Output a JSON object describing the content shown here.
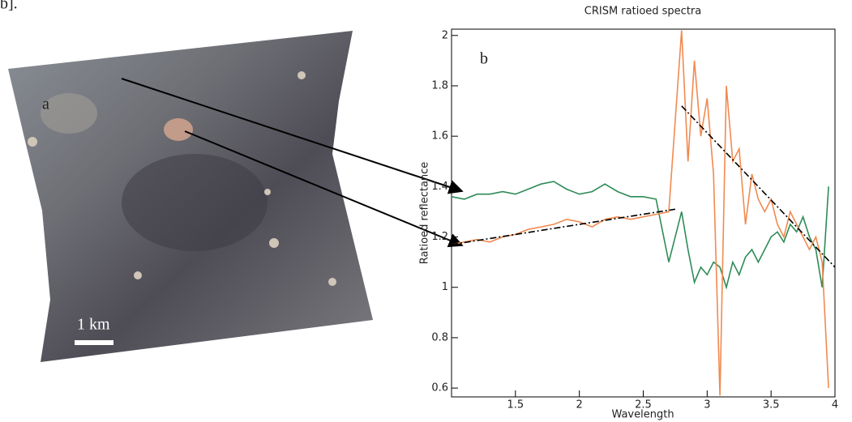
{
  "corner_text": "b].",
  "image_labels": {
    "panel": "a",
    "scale": "1 km"
  },
  "chart_data": {
    "type": "line",
    "title": "CRISM ratioed spectra",
    "panel_label": "b",
    "x_label": "Wavelength",
    "y_label": "Ratioed reflectance",
    "x": [
      1.0,
      1.1,
      1.2,
      1.3,
      1.4,
      1.5,
      1.6,
      1.7,
      1.8,
      1.9,
      2.0,
      2.1,
      2.2,
      2.3,
      2.4,
      2.5,
      2.6,
      2.7,
      2.8,
      2.85,
      2.9,
      2.95,
      3.0,
      3.05,
      3.1,
      3.15,
      3.2,
      3.25,
      3.3,
      3.35,
      3.4,
      3.45,
      3.5,
      3.55,
      3.6,
      3.65,
      3.7,
      3.75,
      3.8,
      3.85,
      3.9,
      3.95
    ],
    "series": [
      {
        "color": "#2e8b57",
        "values": [
          1.36,
          1.35,
          1.37,
          1.37,
          1.38,
          1.37,
          1.39,
          1.41,
          1.42,
          1.39,
          1.37,
          1.38,
          1.41,
          1.38,
          1.36,
          1.36,
          1.35,
          1.1,
          1.3,
          1.15,
          1.02,
          1.08,
          1.05,
          1.1,
          1.08,
          1.0,
          1.1,
          1.05,
          1.12,
          1.15,
          1.1,
          1.15,
          1.2,
          1.22,
          1.18,
          1.25,
          1.22,
          1.28,
          1.2,
          1.15,
          1.0,
          1.4
        ]
      },
      {
        "color": "#f08a50",
        "values": [
          1.17,
          1.18,
          1.19,
          1.18,
          1.2,
          1.21,
          1.23,
          1.24,
          1.25,
          1.27,
          1.26,
          1.24,
          1.27,
          1.28,
          1.27,
          1.28,
          1.29,
          1.3,
          2.02,
          1.5,
          1.9,
          1.6,
          1.75,
          1.45,
          0.57,
          1.8,
          1.5,
          1.55,
          1.25,
          1.45,
          1.35,
          1.3,
          1.35,
          1.25,
          1.2,
          1.3,
          1.25,
          1.2,
          1.15,
          1.2,
          1.1,
          0.6
        ]
      }
    ],
    "fits": [
      {
        "color": "#000000",
        "x": [
          1.0,
          2.75
        ],
        "values": [
          1.17,
          1.31
        ]
      },
      {
        "color": "#000000",
        "x": [
          2.8,
          4.0
        ],
        "values": [
          1.72,
          1.08
        ]
      }
    ],
    "xlim": [
      1.0,
      4.0
    ],
    "ylim": [
      0.565,
      2.025
    ],
    "xticks": [
      1.5,
      2.0,
      2.5,
      3.0,
      3.5,
      4.0
    ],
    "yticks": [
      0.6,
      0.8,
      1.0,
      1.2,
      1.4,
      1.6,
      1.8,
      2.0
    ]
  }
}
